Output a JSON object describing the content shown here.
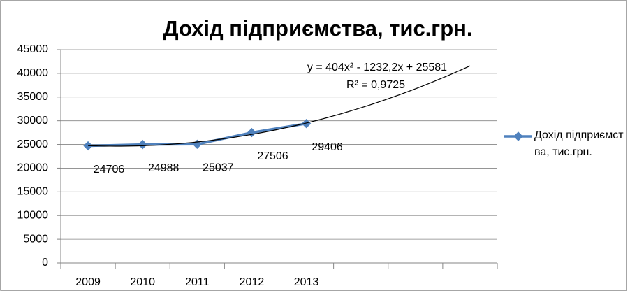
{
  "chart_data": {
    "type": "line",
    "title": "Дохід підприємства, тис.грн.",
    "categories": [
      "2009",
      "2010",
      "2011",
      "2012",
      "2013",
      null,
      null,
      null
    ],
    "series": [
      {
        "name": "Дохід підприємства, тис.грн.",
        "color": "#4f81bd",
        "values": [
          24706,
          24988,
          25037,
          27506,
          29406,
          null,
          null,
          null
        ]
      }
    ],
    "trendline": {
      "equation": "y = 404x² - 1232,2x + 25581",
      "r_squared": "R² = 0,9725",
      "coefficients": [
        404,
        -1232.2,
        25581
      ],
      "color": "#000000"
    },
    "ylim": [
      0,
      45000
    ],
    "yticks": [
      0,
      5000,
      10000,
      15000,
      20000,
      25000,
      30000,
      35000,
      40000,
      45000
    ],
    "grid": true,
    "legend": "right"
  }
}
